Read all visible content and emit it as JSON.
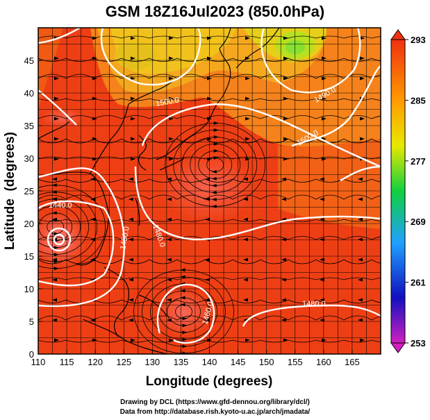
{
  "chart_data": {
    "type": "heatmap",
    "title": "GSM 18Z16Jul2023 (850.0hPa)",
    "xlabel": "Longitude (degrees)",
    "ylabel": "Latitude  (degrees)",
    "xlim": [
      110,
      170
    ],
    "ylim": [
      0,
      50
    ],
    "xticks": [
      "110",
      "115",
      "120",
      "125",
      "130",
      "135",
      "140",
      "145",
      "150",
      "155",
      "160",
      "165"
    ],
    "yticks": [
      "0",
      "5",
      "10",
      "15",
      "20",
      "25",
      "30",
      "35",
      "40",
      "45"
    ],
    "colorbar": {
      "min": 253,
      "max": 293,
      "ticks": [
        "293",
        "285",
        "277",
        "269",
        "261",
        "253"
      ],
      "colors": [
        "#d020c0",
        "#1010c0",
        "#20a0ff",
        "#10d040",
        "#e8e800",
        "#ff9a00",
        "#f03010"
      ]
    },
    "contour_labels": [
      "1440.0",
      "1450.0",
      "1460.0",
      "1470.0",
      "1480.0",
      "1490.0",
      "1500.0"
    ],
    "features": [
      {
        "name": "cyclone",
        "lon": 113,
        "lat": 19.5
      },
      {
        "name": "high",
        "lon": 141,
        "lat": 29
      },
      {
        "name": "low",
        "lon": 135.5,
        "lat": 6.5
      }
    ]
  },
  "credits": {
    "line1": "Drawing by DCL (https://www.gfd-dennou.org/library/dcl/)",
    "line2": "Data from http://database.rish.kyoto-u.ac.jp/arch/jmadata/"
  }
}
